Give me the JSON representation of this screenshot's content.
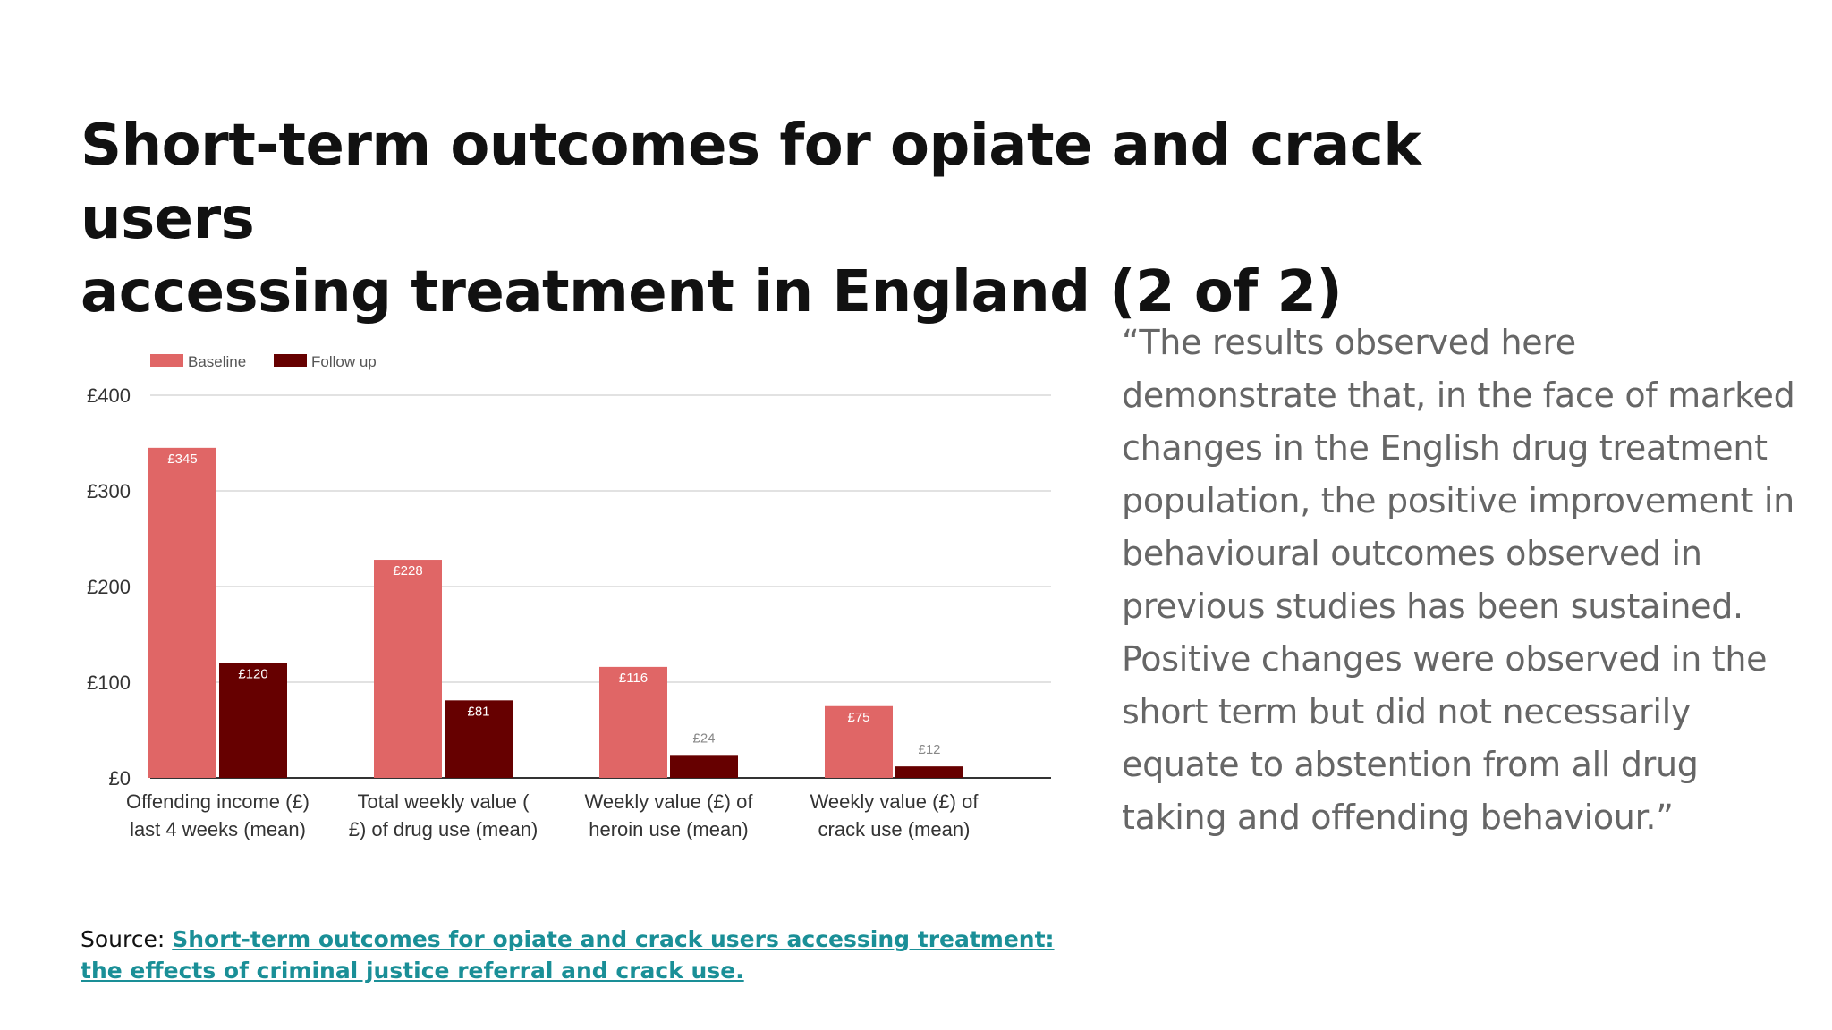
{
  "slide": {
    "title_line1": "Short-term outcomes for opiate and crack users",
    "title_line2": "accessing treatment in England (2 of 2)",
    "quote": "“The results observed here demonstrate that, in the face of marked changes in the English drug treatment population, the positive improvement in behavioural outcomes observed in previous studies has been sustained. Positive changes were observed in the short term but did not necessarily equate to abstention from all drug taking and offending behaviour.”",
    "source_label": "Source: ",
    "source_link": "Short-term outcomes for opiate and crack users accessing treatment: the effects of criminal justice referral and crack use."
  },
  "colors": {
    "baseline": "#e06666",
    "follow_up": "#660000",
    "link": "#1a8f97",
    "quote_text": "#666666"
  },
  "chart_data": {
    "type": "bar",
    "categories": [
      [
        "Offending income (£)",
        "last 4 weeks (mean)"
      ],
      [
        "Total weekly value (",
        "£) of drug use (mean)"
      ],
      [
        "Weekly value (£) of",
        "heroin use (mean)"
      ],
      [
        "Weekly value (£) of",
        "crack use (mean)"
      ]
    ],
    "series": [
      {
        "name": "Baseline",
        "values": [
          345,
          228,
          116,
          75
        ],
        "labels": [
          "£345",
          "£228",
          "£116",
          "£75"
        ]
      },
      {
        "name": "Follow up",
        "values": [
          120,
          81,
          24,
          12
        ],
        "labels": [
          "£120",
          "£81",
          "£24",
          "£12"
        ]
      }
    ],
    "y_ticks": [
      0,
      100,
      200,
      300,
      400
    ],
    "y_tick_labels": [
      "£0",
      "£100",
      "£200",
      "£300",
      "£400"
    ],
    "ylim": [
      0,
      400
    ],
    "legend_position": "top-left",
    "grid": true
  }
}
